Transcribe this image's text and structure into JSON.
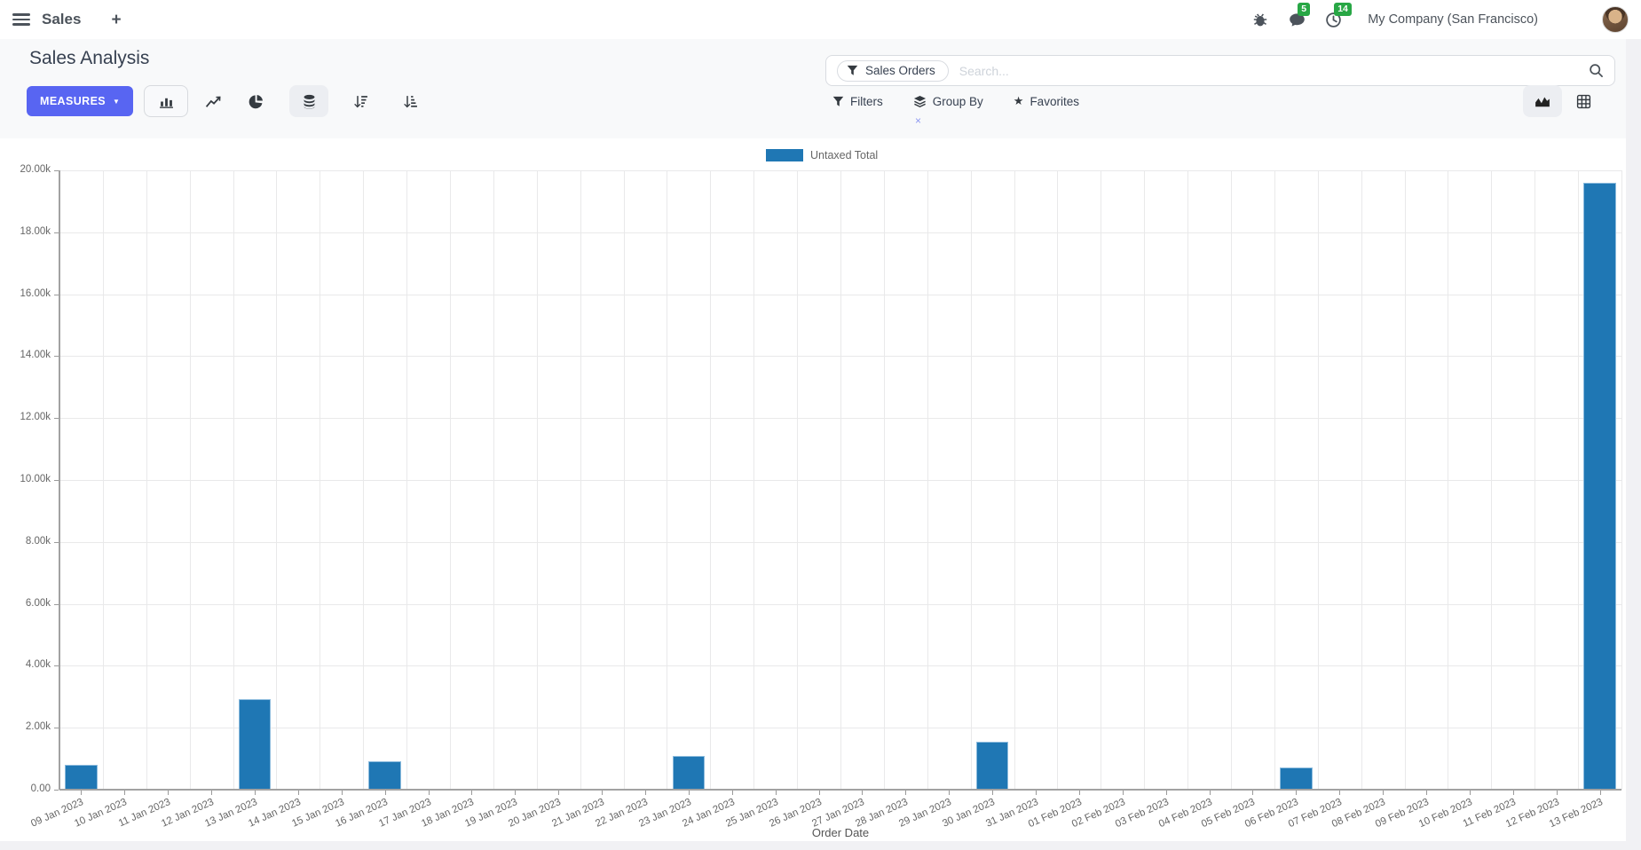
{
  "navbar": {
    "app_label": "Sales",
    "plus": "+",
    "message_badge": "5",
    "activity_badge": "14",
    "company": "My Company (San Francisco)"
  },
  "control_panel": {
    "title": "Sales Analysis",
    "measures_label": "MEASURES",
    "caret": "▼",
    "search": {
      "facet_label": "Sales Orders",
      "facet_remove": "×",
      "placeholder": "Search..."
    },
    "filters_label": "Filters",
    "group_by_label": "Group By",
    "favorites_label": "Favorites",
    "star": "★"
  },
  "colors": {
    "bar": "#1f77b4",
    "accent": "#5865f2",
    "badge_green": "#28a745"
  },
  "chart_data": {
    "type": "bar",
    "title": "",
    "legend": [
      "Untaxed Total"
    ],
    "xlabel": "Order Date",
    "ylabel": "",
    "ylim": [
      0,
      20000
    ],
    "ytick_step": 2000,
    "ytick_labels": [
      "0.00",
      "2.00k",
      "4.00k",
      "6.00k",
      "8.00k",
      "10.00k",
      "12.00k",
      "14.00k",
      "16.00k",
      "18.00k",
      "20.00k"
    ],
    "grid": true,
    "legend_position": "top",
    "categories": [
      "09 Jan 2023",
      "10 Jan 2023",
      "11 Jan 2023",
      "12 Jan 2023",
      "13 Jan 2023",
      "14 Jan 2023",
      "15 Jan 2023",
      "16 Jan 2023",
      "17 Jan 2023",
      "18 Jan 2023",
      "19 Jan 2023",
      "20 Jan 2023",
      "21 Jan 2023",
      "22 Jan 2023",
      "23 Jan 2023",
      "24 Jan 2023",
      "25 Jan 2023",
      "26 Jan 2023",
      "27 Jan 2023",
      "28 Jan 2023",
      "29 Jan 2023",
      "30 Jan 2023",
      "31 Jan 2023",
      "01 Feb 2023",
      "02 Feb 2023",
      "03 Feb 2023",
      "04 Feb 2023",
      "05 Feb 2023",
      "06 Feb 2023",
      "07 Feb 2023",
      "08 Feb 2023",
      "09 Feb 2023",
      "10 Feb 2023",
      "11 Feb 2023",
      "12 Feb 2023",
      "13 Feb 2023"
    ],
    "values": [
      800,
      0,
      0,
      0,
      2920,
      0,
      0,
      920,
      0,
      0,
      0,
      0,
      0,
      0,
      1100,
      0,
      0,
      0,
      0,
      0,
      0,
      1550,
      0,
      0,
      0,
      0,
      0,
      0,
      720,
      0,
      0,
      0,
      0,
      0,
      0,
      19600
    ]
  }
}
